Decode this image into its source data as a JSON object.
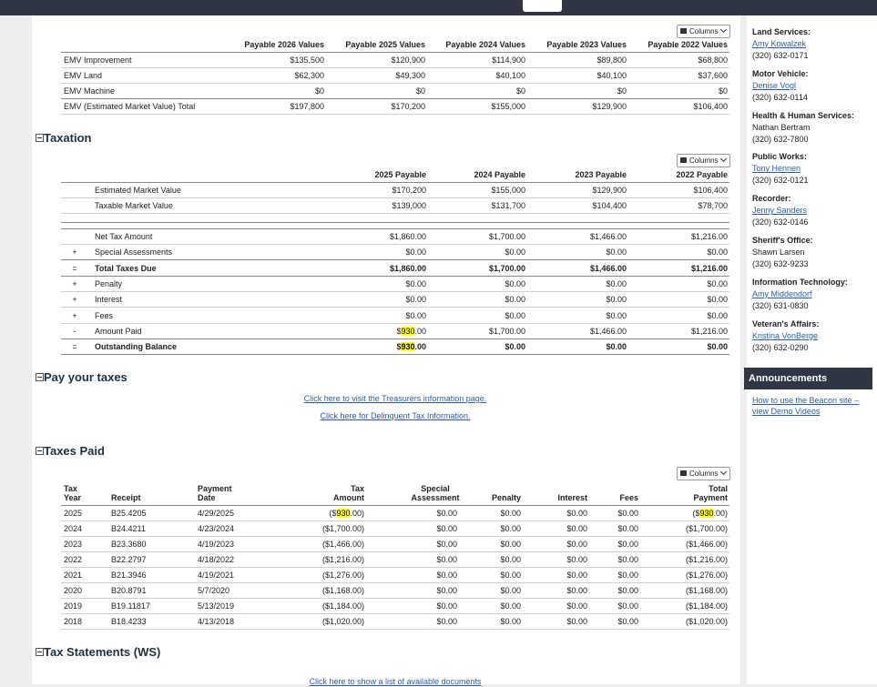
{
  "highlight": {
    "term": "930",
    "color": "#ffff00"
  },
  "emv_table": {
    "columns_button": "Columns",
    "headers": [
      "Payable 2026 Values",
      "Payable 2025 Values",
      "Payable 2024 Values",
      "Payable 2023 Values",
      "Payable 2022 Values"
    ],
    "rows": [
      {
        "label": "EMV Improvement",
        "values": [
          "$135,500",
          "$120,900",
          "$114,900",
          "$89,800",
          "$68,800"
        ]
      },
      {
        "label": "EMV Land",
        "values": [
          "$62,300",
          "$49,300",
          "$40,100",
          "$40,100",
          "$37,600"
        ]
      },
      {
        "label": "EMV Machine",
        "values": [
          "$0",
          "$0",
          "$0",
          "$0",
          "$0"
        ]
      },
      {
        "label": "EMV (Estimated Market Value) Total",
        "values": [
          "$197,800",
          "$170,200",
          "$155,000",
          "$129,900",
          "$106,400"
        ]
      }
    ]
  },
  "taxation": {
    "title": "Taxation",
    "columns_button": "Columns",
    "headers": [
      "2025 Payable",
      "2024 Payable",
      "2023 Payable",
      "2022 Payable"
    ],
    "value_rows": [
      {
        "label": "Estimated Market Value",
        "values": [
          "$170,200",
          "$155,000",
          "$129,900",
          "$106,400"
        ]
      },
      {
        "label": "Taxable Market Value",
        "values": [
          "$139,000",
          "$131,700",
          "$104,400",
          "$78,700"
        ]
      }
    ],
    "tax_rows": [
      {
        "label": "Net Tax Amount",
        "values": [
          "$1,860.00",
          "$1,700.00",
          "$1,466.00",
          "$1,216.00"
        ]
      },
      {
        "sign": "+",
        "label": "Special Assessments",
        "values": [
          "$0.00",
          "$0.00",
          "$0.00",
          "$0.00"
        ]
      },
      {
        "sign": "=",
        "label": "Total Taxes Due",
        "bold": true,
        "values": [
          "$1,860.00",
          "$1,700.00",
          "$1,466.00",
          "$1,216.00"
        ]
      },
      {
        "sign": "+",
        "label": "Penalty",
        "values": [
          "$0.00",
          "$0.00",
          "$0.00",
          "$0.00"
        ]
      },
      {
        "sign": "+",
        "label": "Interest",
        "values": [
          "$0.00",
          "$0.00",
          "$0.00",
          "$0.00"
        ]
      },
      {
        "sign": "+",
        "label": "Fees",
        "values": [
          "$0.00",
          "$0.00",
          "$0.00",
          "$0.00"
        ]
      },
      {
        "sign": "-",
        "label": "Amount Paid",
        "values": [
          "$930.00",
          "$1,700.00",
          "$1,466.00",
          "$1,216.00"
        ]
      },
      {
        "sign": "=",
        "label": "Outstanding Balance",
        "bold": true,
        "values": [
          "$930.00",
          "$0.00",
          "$0.00",
          "$0.00"
        ]
      }
    ]
  },
  "pay_taxes": {
    "title": "Pay your taxes",
    "links": [
      "Click here to visit the Treasurers information page.",
      "Click here for Delinquent Tax Information."
    ]
  },
  "taxes_paid": {
    "title": "Taxes Paid",
    "columns_button": "Columns",
    "headers": [
      [
        "Tax",
        "Year"
      ],
      [
        "Receipt"
      ],
      [
        "Payment",
        "Date"
      ],
      [
        "Tax",
        "Amount"
      ],
      [
        "Special",
        "Assessment"
      ],
      [
        "Penalty"
      ],
      [
        "Interest"
      ],
      [
        "Fees"
      ],
      [
        "Total",
        "Payment"
      ]
    ],
    "rows": [
      [
        "2025",
        "B25.4205",
        "4/29/2025",
        "($930.00)",
        "$0.00",
        "$0.00",
        "$0.00",
        "$0.00",
        "($930.00)"
      ],
      [
        "2024",
        "B24.4211",
        "4/23/2024",
        "($1,700.00)",
        "$0.00",
        "$0.00",
        "$0.00",
        "$0.00",
        "($1,700.00)"
      ],
      [
        "2023",
        "B23.3680",
        "4/19/2023",
        "($1,466.00)",
        "$0.00",
        "$0.00",
        "$0.00",
        "$0.00",
        "($1,466.00)"
      ],
      [
        "2022",
        "B22.2797",
        "4/18/2022",
        "($1,216.00)",
        "$0.00",
        "$0.00",
        "$0.00",
        "$0.00",
        "($1,216.00)"
      ],
      [
        "2021",
        "B21.3946",
        "4/19/2021",
        "($1,276.00)",
        "$0.00",
        "$0.00",
        "$0.00",
        "$0.00",
        "($1,276.00)"
      ],
      [
        "2020",
        "B20.8791",
        "5/7/2020",
        "($1,168.00)",
        "$0.00",
        "$0.00",
        "$0.00",
        "$0.00",
        "($1,168.00)"
      ],
      [
        "2019",
        "B19.11817",
        "5/13/2019",
        "($1,184.00)",
        "$0.00",
        "$0.00",
        "$0.00",
        "$0.00",
        "($1,184.00)"
      ],
      [
        "2018",
        "B18.4233",
        "4/13/2018",
        "($1,020.00)",
        "$0.00",
        "$0.00",
        "$0.00",
        "$0.00",
        "($1,020.00)"
      ]
    ]
  },
  "tax_statements": {
    "title": "Tax Statements (WS)",
    "link": "Click here to show a list of available documents"
  },
  "sidebar": {
    "contacts": [
      {
        "department": "Land Services:",
        "name": "Amy Kowalzek",
        "link": true,
        "phone": "(320) 632-0171"
      },
      {
        "department": "Motor Vehicle:",
        "name": "Denise Vogl",
        "link": true,
        "phone": "(320) 632-0114"
      },
      {
        "department": "Health & Human Services:",
        "name": "Nathan Bertram",
        "link": false,
        "phone": "(320) 632-7800"
      },
      {
        "department": "Public Works:",
        "name": "Tony Hennen",
        "link": true,
        "phone": "(320) 632-0121"
      },
      {
        "department": "Recorder:",
        "name": "Jenny Sanders",
        "link": true,
        "phone": "(320) 632-0146"
      },
      {
        "department": "Sheriff's Office:",
        "name": "Shawn Larsen",
        "link": false,
        "phone": "(320) 632-9233"
      },
      {
        "department": "Information Technology:",
        "name": "Amy Middendorf",
        "link": true,
        "phone": "(320) 631-0830"
      },
      {
        "department": "Veteran's Affairs:",
        "name": "Kristina VonBerge",
        "link": true,
        "phone": "(320) 632-0290"
      }
    ],
    "announcements": {
      "title": "Announcements",
      "links": [
        "How to use the Beacon site – view Demo Videos"
      ]
    }
  }
}
